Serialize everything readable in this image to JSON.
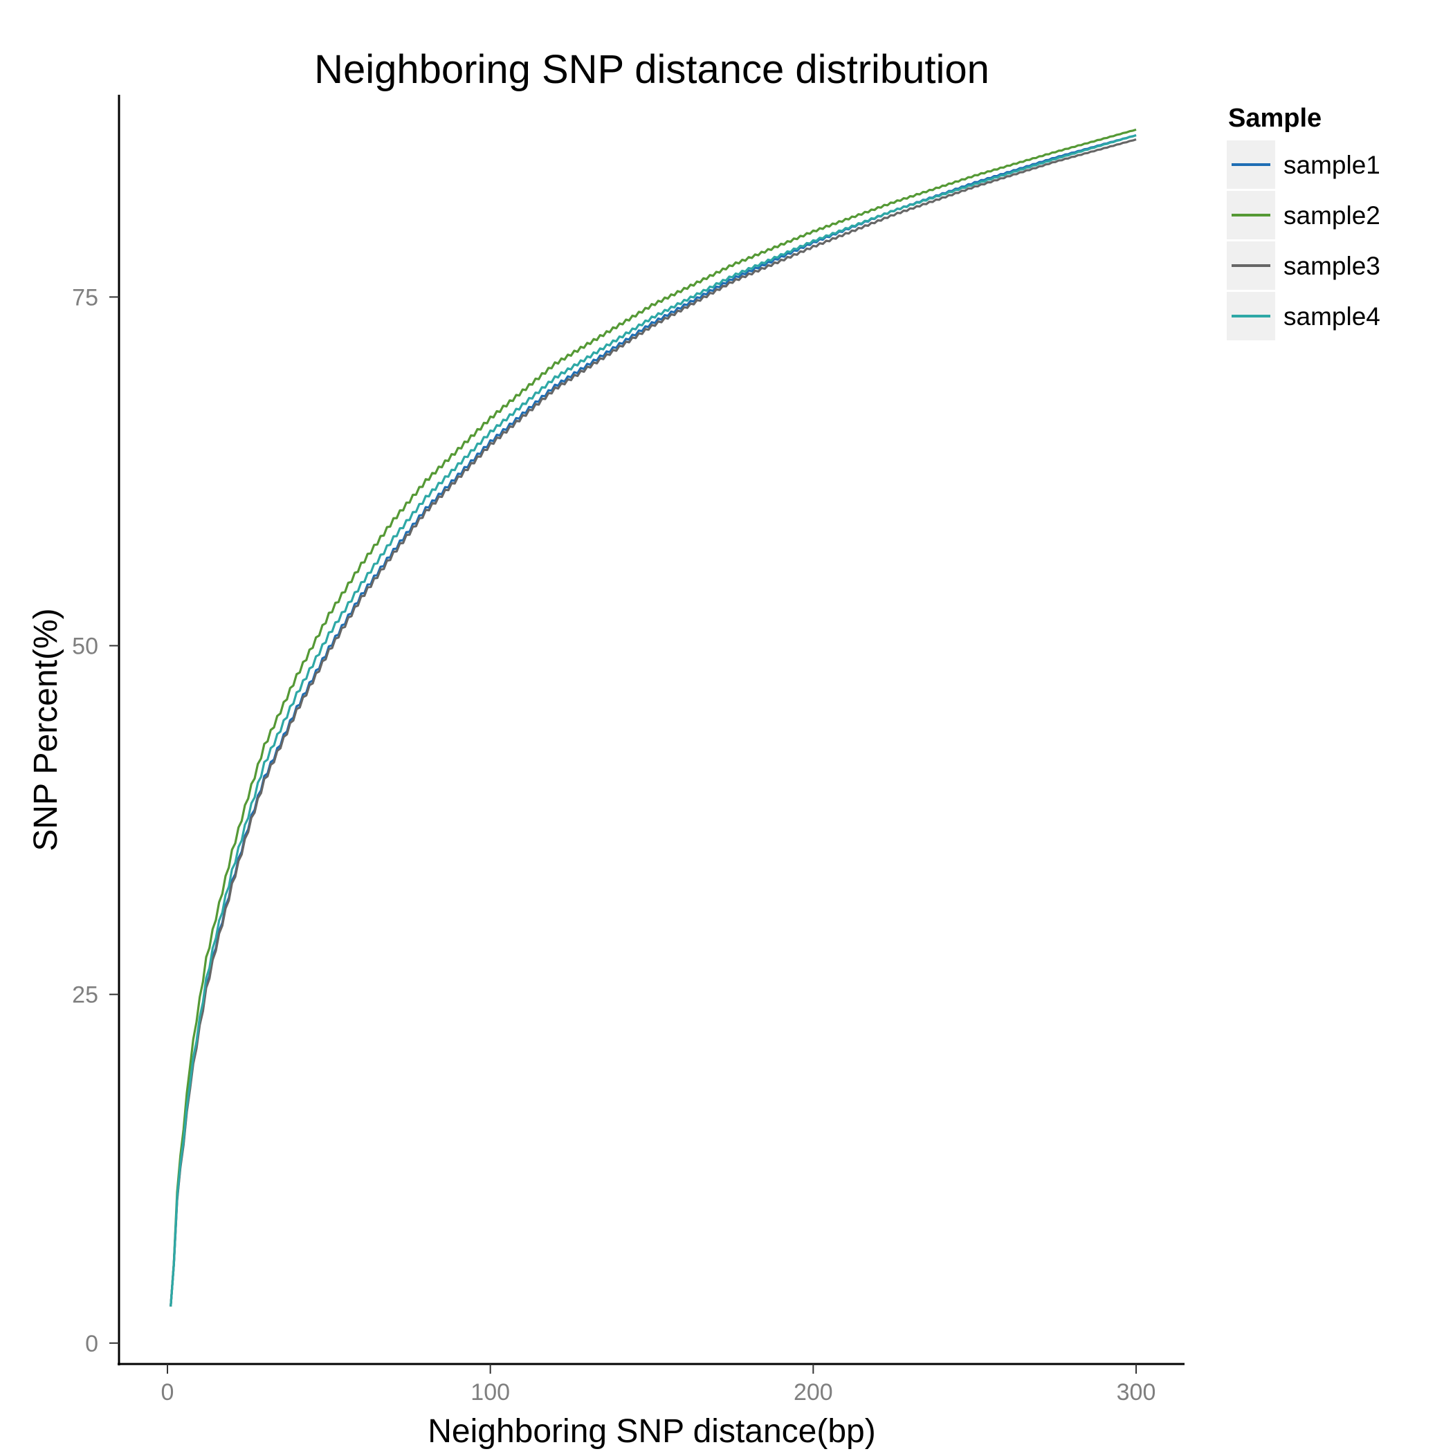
{
  "chart_data": {
    "type": "line",
    "title": "Neighboring SNP distance distribution",
    "xlabel": "Neighboring SNP distance(bp)",
    "ylabel": "SNP Percent(%)",
    "xlim": [
      -15,
      315
    ],
    "ylim": [
      -1.5,
      89.5
    ],
    "x_ticks": [
      0,
      100,
      200,
      300
    ],
    "y_ticks": [
      0,
      25,
      50,
      75
    ],
    "x_tick_labels": [
      "0",
      "100",
      "200",
      "300"
    ],
    "y_tick_labels": [
      "0",
      "25",
      "50",
      "75"
    ],
    "grid": false,
    "legend": {
      "title": "Sample",
      "placement": "right"
    },
    "x": [
      1,
      2,
      3,
      5,
      7,
      9,
      12,
      15,
      20,
      25,
      30,
      40,
      50,
      60,
      70,
      80,
      100,
      120,
      150,
      175,
      200,
      225,
      250,
      275,
      300
    ],
    "series": [
      {
        "name": "sample1",
        "color": "#1f6eb4",
        "values": [
          2.8,
          5.5,
          10.5,
          14.5,
          18.5,
          21.5,
          25.5,
          28.5,
          33.0,
          37.0,
          40.5,
          45.5,
          49.8,
          53.6,
          56.8,
          59.8,
          64.6,
          68.6,
          73.1,
          76.3,
          78.9,
          81.2,
          83.2,
          85.0,
          86.6
        ]
      },
      {
        "name": "sample2",
        "color": "#559935",
        "values": [
          2.8,
          5.6,
          11.0,
          15.5,
          20.0,
          23.2,
          27.5,
          30.5,
          35.2,
          39.2,
          42.8,
          47.8,
          52.2,
          55.8,
          59.0,
          61.8,
          66.3,
          70.2,
          74.4,
          77.3,
          79.7,
          81.8,
          83.7,
          85.4,
          87.0
        ]
      },
      {
        "name": "sample3",
        "color": "#666666",
        "values": [
          2.8,
          5.5,
          10.4,
          14.4,
          18.4,
          21.3,
          25.3,
          28.3,
          32.8,
          36.8,
          40.3,
          45.3,
          49.6,
          53.4,
          56.6,
          59.6,
          64.4,
          68.4,
          72.9,
          76.1,
          78.6,
          80.9,
          82.9,
          84.7,
          86.3
        ]
      },
      {
        "name": "sample4",
        "color": "#2ea8a6",
        "values": [
          2.8,
          5.5,
          10.6,
          14.7,
          18.8,
          21.8,
          26.0,
          29.2,
          33.8,
          37.8,
          41.5,
          46.5,
          50.8,
          54.4,
          57.7,
          60.6,
          65.3,
          69.2,
          73.5,
          76.5,
          79.0,
          81.2,
          83.1,
          84.9,
          86.6
        ]
      }
    ]
  }
}
